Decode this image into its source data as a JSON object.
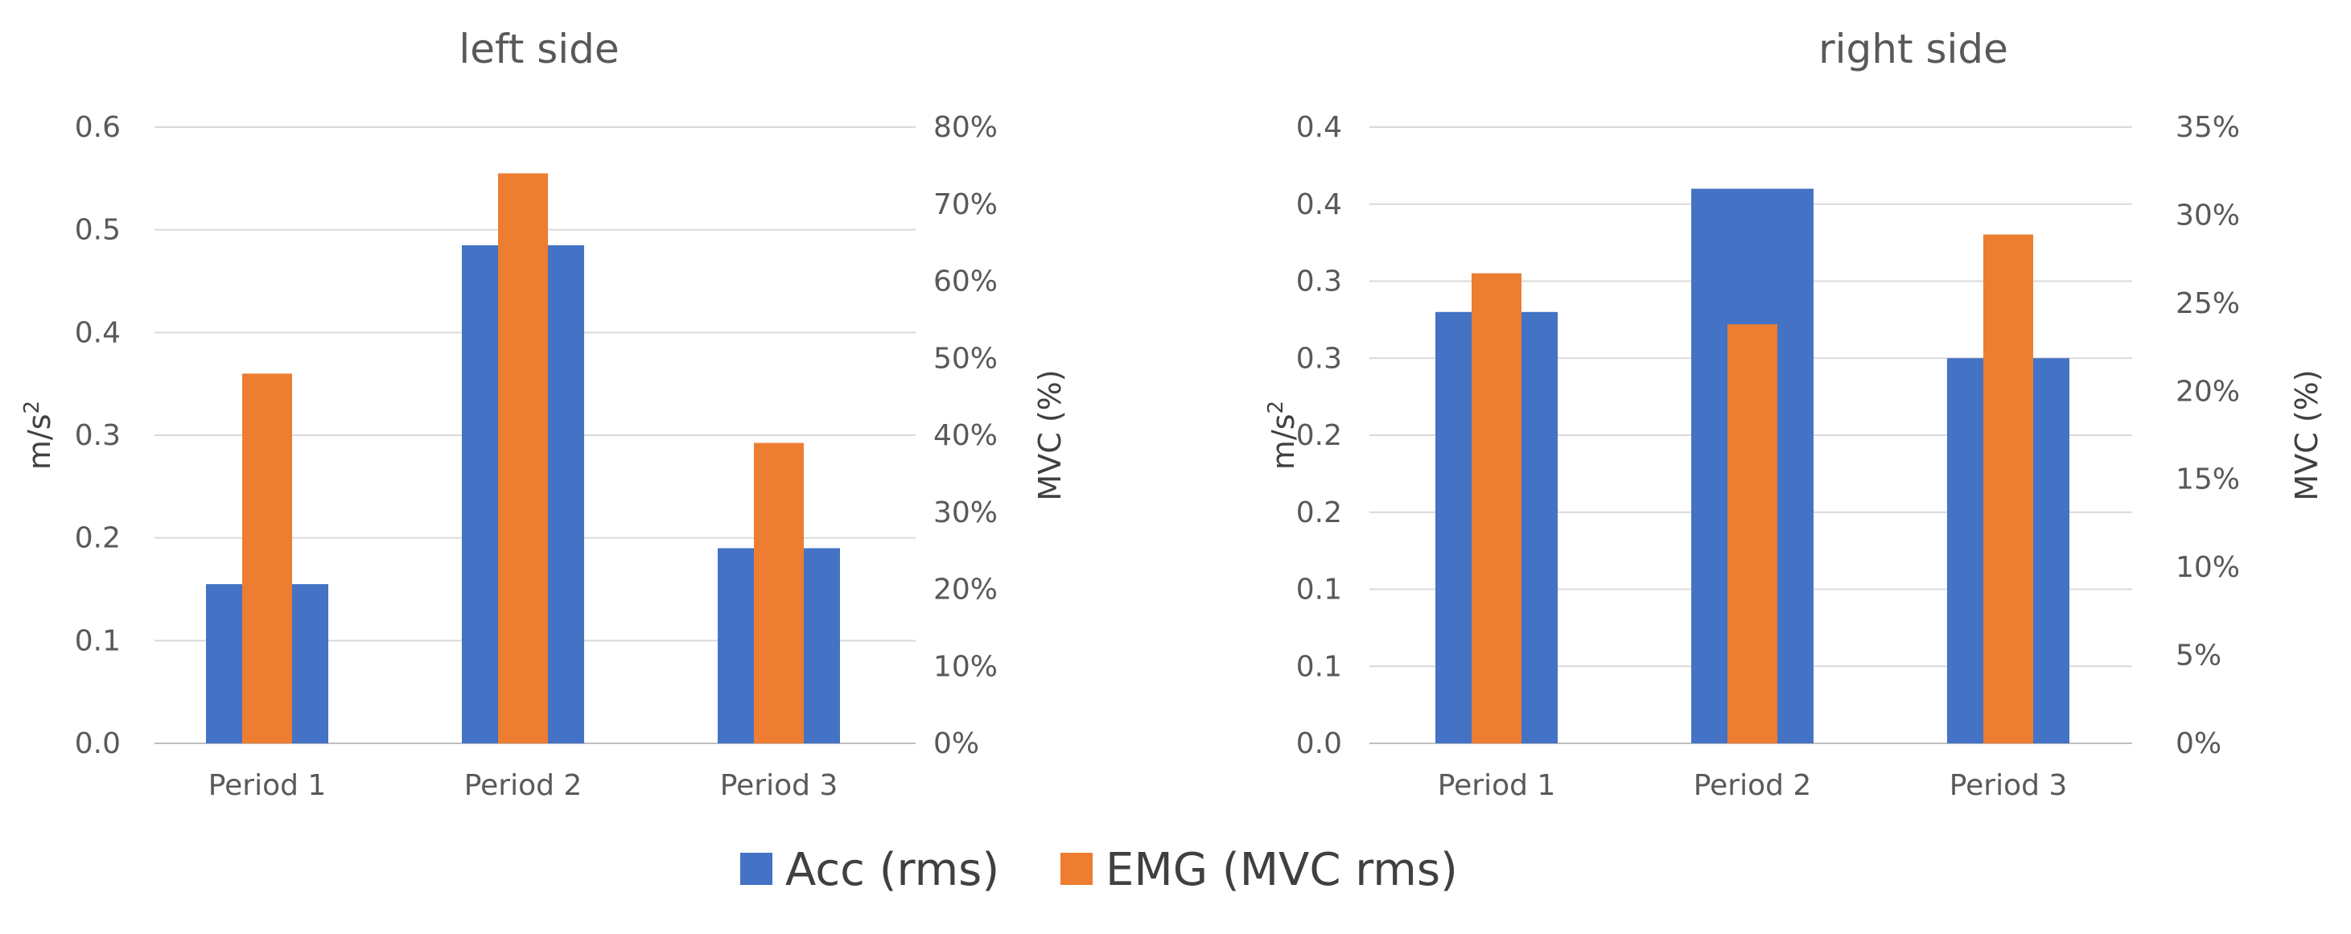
{
  "chart_data": [
    {
      "type": "bar",
      "title": "left side",
      "categories": [
        "Period 1",
        "Period 2",
        "Period 3"
      ],
      "ylabel": "m/s",
      "ylabel_superscript": "2",
      "y2label": "MVC (%)",
      "ylim": [
        0,
        0.6
      ],
      "y2lim": [
        0,
        80
      ],
      "yticks": [
        "0.0",
        "0.1",
        "0.2",
        "0.3",
        "0.4",
        "0.5",
        "0.6"
      ],
      "y2ticks": [
        "0%",
        "10%",
        "20%",
        "30%",
        "40%",
        "50%",
        "60%",
        "70%",
        "80%"
      ],
      "series": [
        {
          "name": "Acc (rms)",
          "axis": "left",
          "color": "#4472C4",
          "values": [
            0.155,
            0.485,
            0.19
          ]
        },
        {
          "name": "EMG (MVC rms)",
          "axis": "right",
          "color": "#ED7D31",
          "values": [
            48,
            74,
            39
          ]
        }
      ],
      "grid": true
    },
    {
      "type": "bar",
      "title": "right side",
      "categories": [
        "Period 1",
        "Period 2",
        "Period 3"
      ],
      "ylabel": "m/s",
      "ylabel_superscript": "2",
      "y2label": "MVC (%)",
      "ylim": [
        0,
        0.4
      ],
      "y2lim": [
        0,
        35
      ],
      "yticks": [
        "0.0",
        "0.1",
        "0.1",
        "0.2",
        "0.2",
        "0.3",
        "0.3",
        "0.4",
        "0.4"
      ],
      "y2ticks": [
        "0%",
        "5%",
        "10%",
        "15%",
        "20%",
        "25%",
        "30%",
        "35%"
      ],
      "series": [
        {
          "name": "Acc (rms)",
          "axis": "left",
          "color": "#4472C4",
          "values": [
            0.28,
            0.36,
            0.25
          ]
        },
        {
          "name": "EMG (MVC rms)",
          "axis": "right",
          "color": "#ED7D31",
          "values": [
            26.7,
            23.8,
            28.9
          ]
        }
      ],
      "grid": true
    }
  ],
  "legend": [
    {
      "label": "Acc (rms)",
      "color": "#4472C4"
    },
    {
      "label": "EMG (MVC rms)",
      "color": "#ED7D31"
    }
  ]
}
